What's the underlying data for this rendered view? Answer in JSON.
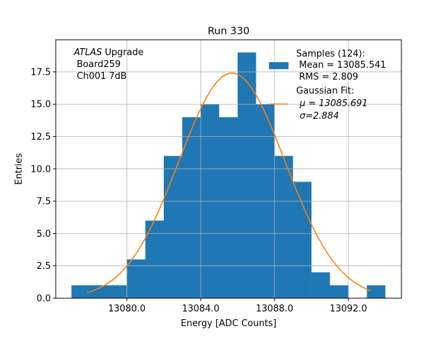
{
  "chart_data": {
    "type": "bar",
    "title": "Run 330",
    "xlabel": "Energy [ADC Counts]",
    "ylabel": "Entries",
    "xlim": [
      13076.15,
      13094.87
    ],
    "ylim": [
      0,
      19.98
    ],
    "grid": true,
    "xticks": [
      13080,
      13084,
      13088,
      13092
    ],
    "xtick_labels": [
      "13080.0",
      "13084.0",
      "13088.0",
      "13092.0"
    ],
    "yticks": [
      0,
      2.5,
      5,
      7.5,
      10,
      12.5,
      15,
      17.5
    ],
    "ytick_labels": [
      "0.0",
      "2.5",
      "5.0",
      "7.5",
      "10.0",
      "12.5",
      "15.0",
      "17.5"
    ],
    "histogram": {
      "bin_width": 1,
      "bin_starts": [
        13077,
        13078,
        13079,
        13080,
        13081,
        13082,
        13083,
        13084,
        13085,
        13086,
        13087,
        13088,
        13089,
        13090,
        13091,
        13092,
        13093
      ],
      "values": [
        1,
        1,
        1,
        3,
        6,
        11,
        14,
        15,
        14,
        19,
        15,
        11,
        9,
        2,
        1,
        0,
        1
      ],
      "color": "#1f77b4"
    },
    "fit": {
      "type": "gaussian",
      "mu": 13085.691,
      "sigma": 2.884,
      "amplitude": 17.4,
      "x_range": [
        13077.85,
        13093.2
      ],
      "color": "#ff7f0e"
    },
    "annotation": {
      "line1_italic": "ATLAS",
      "line1_rest": " Upgrade",
      "line2": " Board259",
      "line3": " Ch001 7dB"
    },
    "legend": {
      "placement": "top-right",
      "samples": [
        "Samples (124):",
        " Mean = 13085.541",
        " RMS = 2.809"
      ],
      "fit": [
        "Gaussian Fit:",
        "μ = 13085.691",
        "σ=2.884"
      ]
    }
  }
}
